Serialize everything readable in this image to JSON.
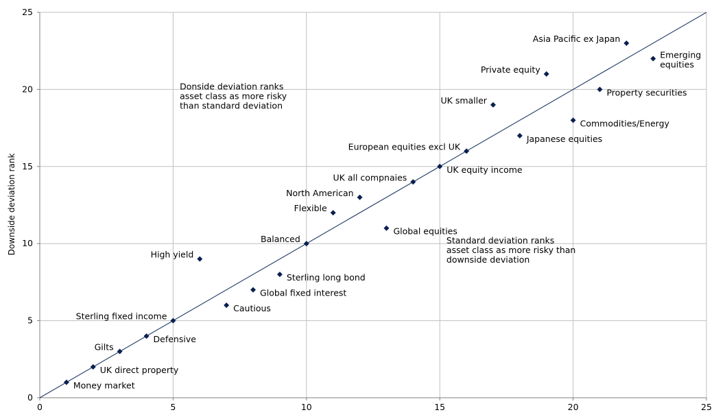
{
  "chart_data": {
    "type": "scatter",
    "xlabel": "",
    "ylabel": "Downside deviation rank",
    "xlim": [
      0,
      25
    ],
    "ylim": [
      0,
      25
    ],
    "xticks": [
      0,
      5,
      10,
      15,
      20,
      25
    ],
    "yticks": [
      0,
      5,
      10,
      15,
      20,
      25
    ],
    "grid": true,
    "reference_line": {
      "from": [
        0,
        0
      ],
      "to": [
        25,
        25
      ]
    },
    "points": [
      {
        "label": "Money market",
        "x": 1,
        "y": 1,
        "side": "right"
      },
      {
        "label": "UK direct property",
        "x": 2,
        "y": 2,
        "side": "right"
      },
      {
        "label": "Gilts",
        "x": 3,
        "y": 3,
        "side": "left"
      },
      {
        "label": "Defensive",
        "x": 4,
        "y": 4,
        "side": "right"
      },
      {
        "label": "Sterling fixed income",
        "x": 5,
        "y": 5,
        "side": "left"
      },
      {
        "label": "High yield",
        "x": 6,
        "y": 9,
        "side": "left"
      },
      {
        "label": "Cautious",
        "x": 7,
        "y": 6,
        "side": "right"
      },
      {
        "label": "Global fixed interest",
        "x": 8,
        "y": 7,
        "side": "right"
      },
      {
        "label": "Sterling long bond",
        "x": 9,
        "y": 8,
        "side": "right"
      },
      {
        "label": "Balanced",
        "x": 10,
        "y": 10,
        "side": "left"
      },
      {
        "label": "Flexible",
        "x": 11,
        "y": 12,
        "side": "left"
      },
      {
        "label": "North American",
        "x": 12,
        "y": 13,
        "side": "left"
      },
      {
        "label": "Global equities",
        "x": 13,
        "y": 11,
        "side": "right"
      },
      {
        "label": "UK all compnaies",
        "x": 14,
        "y": 14,
        "side": "left"
      },
      {
        "label": "UK equity income",
        "x": 15,
        "y": 15,
        "side": "right"
      },
      {
        "label": "European equities excl UK",
        "x": 16,
        "y": 16,
        "side": "left"
      },
      {
        "label": "UK smaller",
        "x": 17,
        "y": 19,
        "side": "left"
      },
      {
        "label": "Japanese equities",
        "x": 18,
        "y": 17,
        "side": "right"
      },
      {
        "label": "Private equity",
        "x": 19,
        "y": 21,
        "side": "left"
      },
      {
        "label": "Commodities/Energy",
        "x": 20,
        "y": 18,
        "side": "right"
      },
      {
        "label": "Property securities",
        "x": 21,
        "y": 20,
        "side": "right"
      },
      {
        "label": "Asia Pacific ex Japan",
        "x": 22,
        "y": 23,
        "side": "left"
      },
      {
        "label": [
          "Emerging",
          "equities"
        ],
        "x": 23,
        "y": 22,
        "side": "right"
      }
    ],
    "annotations": [
      {
        "lines": [
          "Donside deviation ranks",
          "asset class as more risky",
          "than standard deviation"
        ],
        "x": 5.25,
        "y": 20.0
      },
      {
        "lines": [
          "Standard deviation ranks",
          "asset class as more risky than",
          "downside deviation"
        ],
        "x": 15.25,
        "y": 10.0
      }
    ],
    "colors": {
      "marker": "#0b2050",
      "line": "#1f3864",
      "grid": "#c0c0c0"
    }
  }
}
